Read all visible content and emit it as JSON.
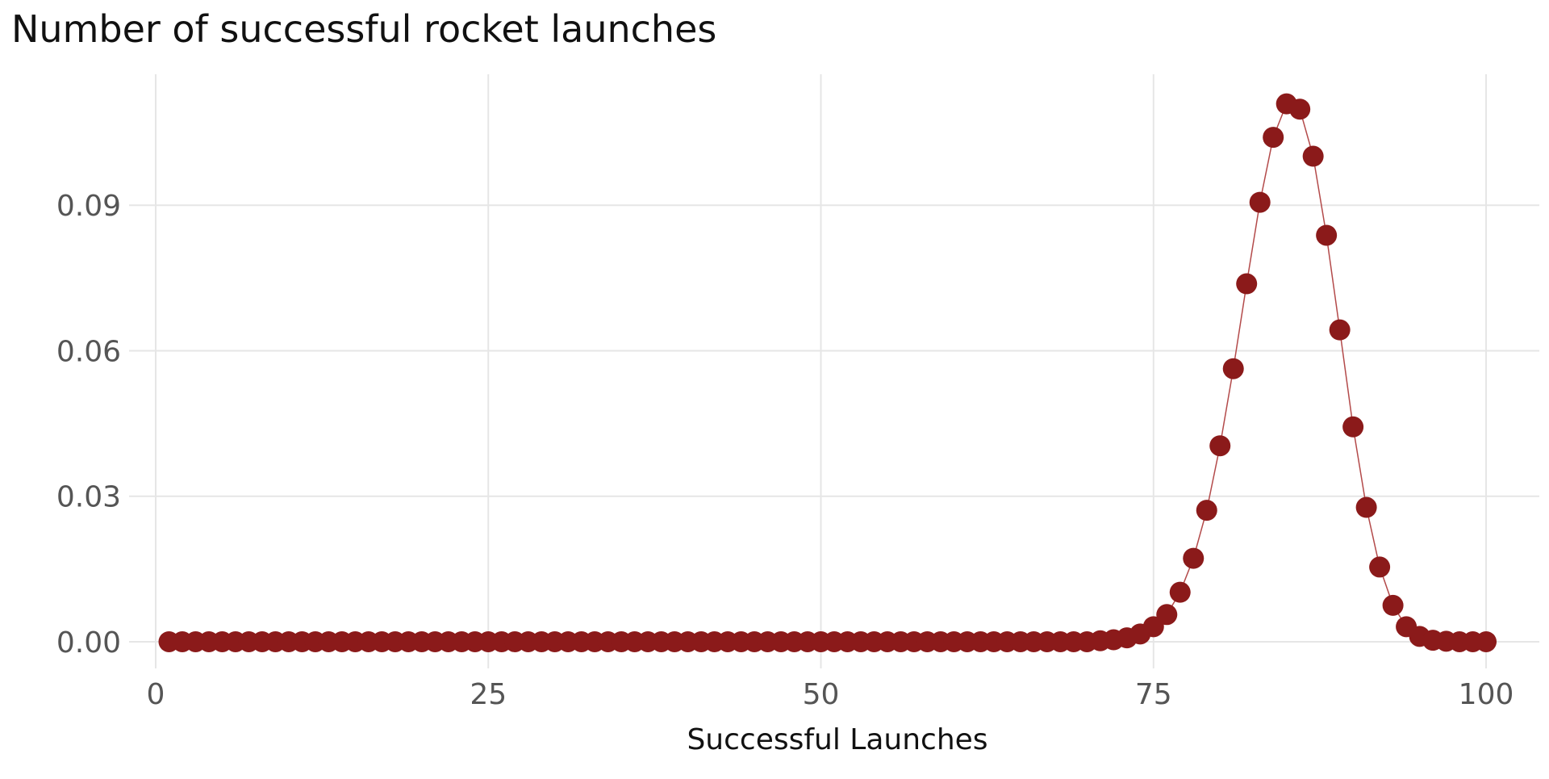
{
  "chart_data": {
    "type": "line",
    "title": "Number of successful rocket launches",
    "xlabel": "Successful Launches",
    "ylabel": "",
    "xlim": [
      -2,
      104
    ],
    "ylim": [
      -0.0055,
      0.117
    ],
    "x_ticks": [
      0,
      25,
      50,
      75,
      100
    ],
    "x_tick_labels": [
      "0",
      "25",
      "50",
      "75",
      "100"
    ],
    "y_ticks": [
      0,
      0.03,
      0.06,
      0.09
    ],
    "y_tick_labels": [
      "0.00",
      "0.03",
      "0.06",
      "0.09"
    ],
    "grid": true,
    "legend": "none",
    "colors": {
      "points": "#8b1a1a",
      "line": "#b34a4a",
      "grid": "#e6e6e6"
    },
    "series": [
      {
        "x": [
          1,
          2,
          3,
          4,
          5,
          6,
          7,
          8,
          9,
          10,
          11,
          12,
          13,
          14,
          15,
          16,
          17,
          18,
          19,
          20,
          21,
          22,
          23,
          24,
          25,
          26,
          27,
          28,
          29,
          30,
          31,
          32,
          33,
          34,
          35,
          36,
          37,
          38,
          39,
          40,
          41,
          42,
          43,
          44,
          45,
          46,
          47,
          48,
          49,
          50,
          51,
          52,
          53,
          54,
          55,
          56,
          57,
          58,
          59,
          60,
          61,
          62,
          63,
          64,
          65,
          66,
          67,
          68,
          69,
          70,
          71,
          72,
          73,
          74,
          75,
          76,
          77,
          78,
          79,
          80,
          81,
          82,
          83,
          84,
          85,
          86,
          87,
          88,
          89,
          90,
          91,
          92,
          93,
          94,
          95,
          96,
          97,
          98,
          99,
          100
        ],
        "y": [
          0,
          0,
          0,
          0,
          0,
          0,
          0,
          0,
          0,
          0,
          0,
          0,
          0,
          0,
          0,
          0,
          0,
          0,
          0,
          0,
          0,
          0,
          0,
          0,
          0,
          0,
          0,
          0,
          0,
          0,
          0,
          0,
          0,
          0,
          0,
          0,
          0,
          0,
          0,
          0,
          0,
          0,
          0,
          0,
          0,
          0,
          0,
          0,
          0,
          0,
          0,
          0,
          0,
          0,
          0,
          0,
          0,
          0,
          0,
          0,
          0,
          0,
          0,
          0,
          0,
          0,
          0,
          0,
          0,
          0,
          0.0002,
          0.0004,
          0.0008,
          0.0016,
          0.0031,
          0.0056,
          0.0102,
          0.0172,
          0.0271,
          0.0404,
          0.0563,
          0.0738,
          0.0906,
          0.104,
          0.1109,
          0.1098,
          0.1001,
          0.0838,
          0.0643,
          0.0443,
          0.0277,
          0.0154,
          0.0075,
          0.0031,
          0.0011,
          0.0003,
          0.0001,
          0,
          0,
          0
        ]
      }
    ]
  }
}
